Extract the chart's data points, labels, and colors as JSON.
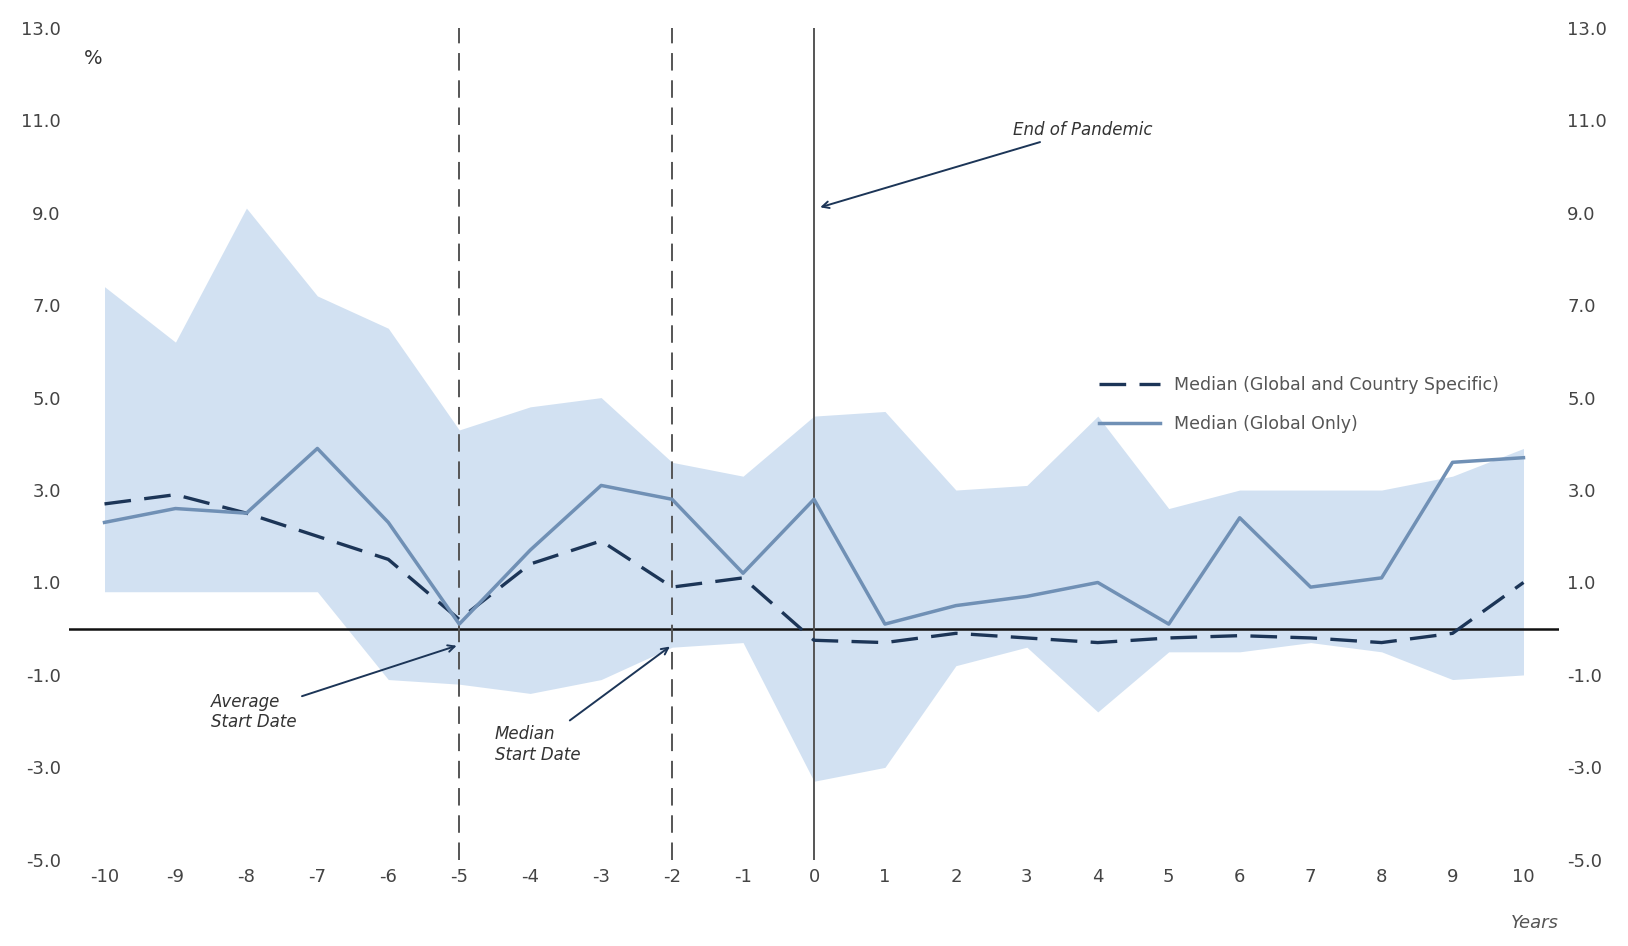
{
  "x": [
    -10,
    -9,
    -8,
    -7,
    -6,
    -5,
    -4,
    -3,
    -2,
    -1,
    0,
    1,
    2,
    3,
    4,
    5,
    6,
    7,
    8,
    9,
    10
  ],
  "median_global_country": [
    2.7,
    2.9,
    2.5,
    2.0,
    1.5,
    0.2,
    1.4,
    1.9,
    0.9,
    1.1,
    -0.25,
    -0.3,
    -0.1,
    -0.2,
    -0.3,
    -0.2,
    -0.15,
    -0.2,
    -0.3,
    -0.1,
    1.0
  ],
  "median_global_only": [
    2.3,
    2.6,
    2.5,
    3.9,
    2.3,
    0.1,
    1.7,
    3.1,
    2.8,
    1.2,
    2.8,
    0.1,
    0.5,
    0.7,
    1.0,
    0.1,
    2.4,
    0.9,
    1.1,
    3.6,
    3.7
  ],
  "shade_upper": [
    7.4,
    6.2,
    9.1,
    7.2,
    6.5,
    4.3,
    4.8,
    5.0,
    3.6,
    3.3,
    4.6,
    4.7,
    3.0,
    3.1,
    4.6,
    2.6,
    3.0,
    3.0,
    3.0,
    3.3,
    3.9
  ],
  "shade_lower": [
    0.8,
    0.8,
    0.8,
    0.8,
    -1.1,
    -1.2,
    -1.4,
    -1.1,
    -0.4,
    -0.3,
    -3.3,
    -3.0,
    -0.8,
    -0.4,
    -1.8,
    -0.5,
    -0.5,
    -0.3,
    -0.5,
    -1.1,
    -1.0
  ],
  "vline_avg_start": -5,
  "vline_median_start": -2,
  "vline_end_pandemic": 0,
  "xlim": [
    -10.5,
    10.5
  ],
  "ylim": [
    -5.0,
    13.0
  ],
  "yticks": [
    -5.0,
    -3.0,
    -1.0,
    1.0,
    3.0,
    5.0,
    7.0,
    9.0,
    11.0,
    13.0
  ],
  "xticks": [
    -10,
    -9,
    -8,
    -7,
    -6,
    -5,
    -4,
    -3,
    -2,
    -1,
    0,
    1,
    2,
    3,
    4,
    5,
    6,
    7,
    8,
    9,
    10
  ],
  "ylabel_left": "%",
  "ylabel_right": "Years",
  "shade_color": "#adc9e8",
  "shade_alpha": 0.55,
  "line_dashed_color": "#1c3557",
  "line_solid_color": "#7090b5",
  "vline_color": "#555555",
  "zero_line_color": "#111111",
  "annotation_end_pandemic": "End of Pandemic",
  "annotation_avg_start": "Average\nStart Date",
  "annotation_median_start": "Median\nStart Date",
  "legend_dashed_label": "Median (Global and Country Specific)",
  "legend_solid_label": "Median (Global Only)",
  "background_color": "#ffffff"
}
